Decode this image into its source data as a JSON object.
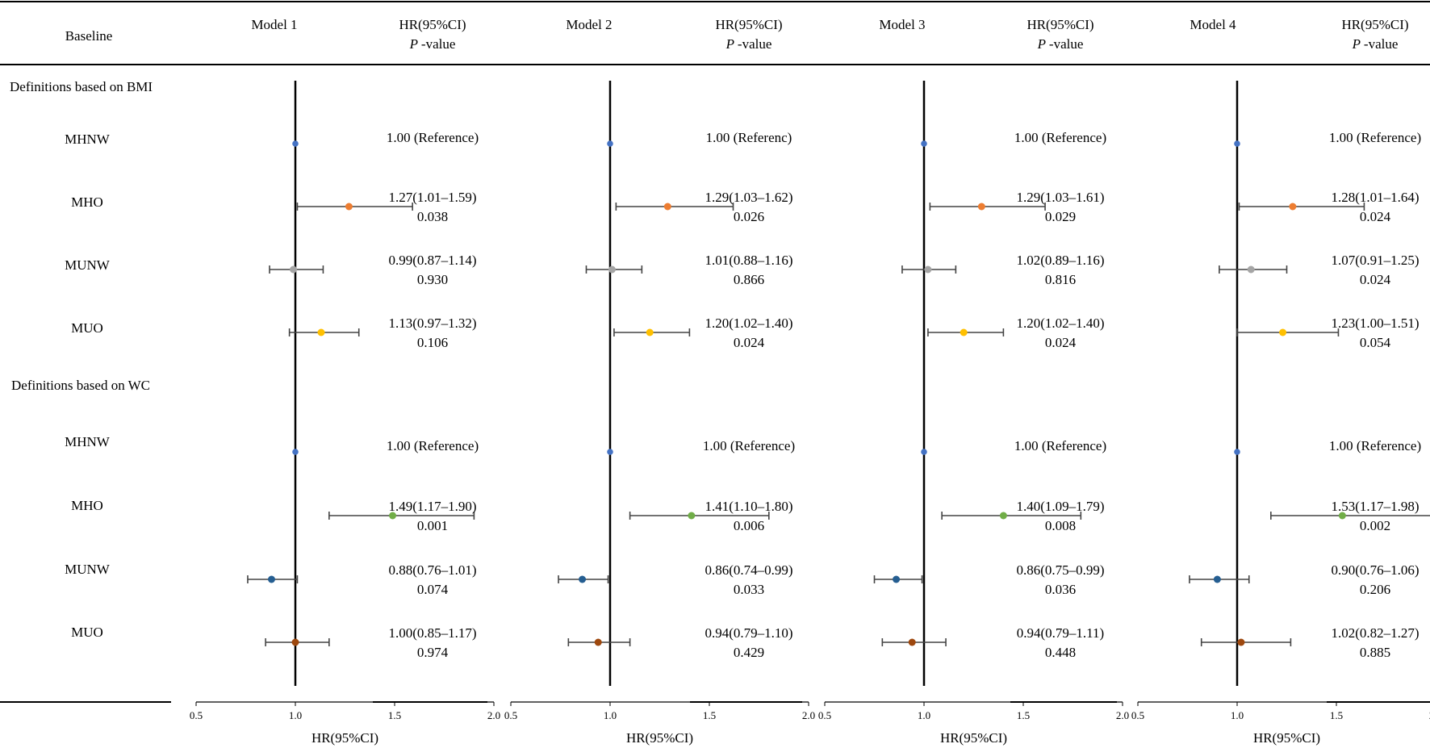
{
  "header": {
    "baseline": "Baseline",
    "hr_label": "HR(95%CI)",
    "p_label": "P",
    "p_suffix": "-value"
  },
  "sections": [
    {
      "title": "Definitions based on BMI",
      "rows": [
        "MHNW",
        "MHO",
        "MUNW",
        "MUO"
      ]
    },
    {
      "title": "Definitions based on WC",
      "rows": [
        "MHNW",
        "MHO",
        "MUNW",
        "MUO"
      ]
    }
  ],
  "axis_label": "HR(95%CI)",
  "series_colors": {
    "MHNW": "#4472c4",
    "MHO": "#ed7d31",
    "MUNW": "#a5a5a5",
    "MUO": "#ffc000",
    "WC_MHNW": "#4472c4",
    "WC_MHO": "#70ad47",
    "WC_MUNW": "#255e91",
    "WC_MUO": "#9e480e"
  },
  "chart_data": [
    {
      "type": "scatter",
      "title": "Model 1",
      "xlabel": "HR(95%CI)",
      "xlim": [
        0.5,
        2.0
      ],
      "xticks": [
        "0.5",
        "1.0",
        "1.5",
        "2.0"
      ],
      "reference_line": 1.0,
      "rows": [
        {
          "group": "BMI",
          "label": "MHNW",
          "hr": 1.0,
          "lo": null,
          "hi": null,
          "text": "1.00 (Reference)",
          "p": ""
        },
        {
          "group": "BMI",
          "label": "MHO",
          "hr": 1.27,
          "lo": 1.01,
          "hi": 1.59,
          "text": "1.27(1.01–1.59)",
          "p": "0.038"
        },
        {
          "group": "BMI",
          "label": "MUNW",
          "hr": 0.99,
          "lo": 0.87,
          "hi": 1.14,
          "text": "0.99(0.87–1.14)",
          "p": "0.930"
        },
        {
          "group": "BMI",
          "label": "MUO",
          "hr": 1.13,
          "lo": 0.97,
          "hi": 1.32,
          "text": "1.13(0.97–1.32)",
          "p": "0.106"
        },
        {
          "group": "WC",
          "label": "MHNW",
          "hr": 1.0,
          "lo": null,
          "hi": null,
          "text": "1.00 (Reference)",
          "p": ""
        },
        {
          "group": "WC",
          "label": "MHO",
          "hr": 1.49,
          "lo": 1.17,
          "hi": 1.9,
          "text": "1.49(1.17–1.90)",
          "p": "0.001"
        },
        {
          "group": "WC",
          "label": "MUNW",
          "hr": 0.88,
          "lo": 0.76,
          "hi": 1.01,
          "text": "0.88(0.76–1.01)",
          "p": "0.074"
        },
        {
          "group": "WC",
          "label": "MUO",
          "hr": 1.0,
          "lo": 0.85,
          "hi": 1.17,
          "text": "1.00(0.85–1.17)",
          "p": "0.974"
        }
      ]
    },
    {
      "type": "scatter",
      "title": "Model 2",
      "xlabel": "HR(95%CI)",
      "xlim": [
        0.5,
        2.0
      ],
      "xticks": [
        "0.5",
        "1.0",
        "1.5",
        "2.0"
      ],
      "reference_line": 1.0,
      "rows": [
        {
          "group": "BMI",
          "label": "MHNW",
          "hr": 1.0,
          "lo": null,
          "hi": null,
          "text": "1.00 (Referenc)",
          "p": ""
        },
        {
          "group": "BMI",
          "label": "MHO",
          "hr": 1.29,
          "lo": 1.03,
          "hi": 1.62,
          "text": "1.29(1.03–1.62)",
          "p": "0.026"
        },
        {
          "group": "BMI",
          "label": "MUNW",
          "hr": 1.01,
          "lo": 0.88,
          "hi": 1.16,
          "text": "1.01(0.88–1.16)",
          "p": "0.866"
        },
        {
          "group": "BMI",
          "label": "MUO",
          "hr": 1.2,
          "lo": 1.02,
          "hi": 1.4,
          "text": "1.20(1.02–1.40)",
          "p": "0.024"
        },
        {
          "group": "WC",
          "label": "MHNW",
          "hr": 1.0,
          "lo": null,
          "hi": null,
          "text": "1.00 (Reference)",
          "p": ""
        },
        {
          "group": "WC",
          "label": "MHO",
          "hr": 1.41,
          "lo": 1.1,
          "hi": 1.8,
          "text": "1.41(1.10–1.80)",
          "p": "0.006"
        },
        {
          "group": "WC",
          "label": "MUNW",
          "hr": 0.86,
          "lo": 0.74,
          "hi": 0.99,
          "text": "0.86(0.74–0.99)",
          "p": "0.033"
        },
        {
          "group": "WC",
          "label": "MUO",
          "hr": 0.94,
          "lo": 0.79,
          "hi": 1.1,
          "text": "0.94(0.79–1.10)",
          "p": "0.429"
        }
      ]
    },
    {
      "type": "scatter",
      "title": "Model 3",
      "xlabel": "HR(95%CI)",
      "xlim": [
        0.5,
        2.0
      ],
      "xticks": [
        "0.5",
        "1.0",
        "1.5",
        "2.0"
      ],
      "reference_line": 1.0,
      "rows": [
        {
          "group": "BMI",
          "label": "MHNW",
          "hr": 1.0,
          "lo": null,
          "hi": null,
          "text": "1.00 (Reference)",
          "p": ""
        },
        {
          "group": "BMI",
          "label": "MHO",
          "hr": 1.29,
          "lo": 1.03,
          "hi": 1.61,
          "text": "1.29(1.03–1.61)",
          "p": "0.029"
        },
        {
          "group": "BMI",
          "label": "MUNW",
          "hr": 1.02,
          "lo": 0.89,
          "hi": 1.16,
          "text": "1.02(0.89–1.16)",
          "p": "0.816"
        },
        {
          "group": "BMI",
          "label": "MUO",
          "hr": 1.2,
          "lo": 1.02,
          "hi": 1.4,
          "text": "1.20(1.02–1.40)",
          "p": "0.024"
        },
        {
          "group": "WC",
          "label": "MHNW",
          "hr": 1.0,
          "lo": null,
          "hi": null,
          "text": "1.00 (Reference)",
          "p": ""
        },
        {
          "group": "WC",
          "label": "MHO",
          "hr": 1.4,
          "lo": 1.09,
          "hi": 1.79,
          "text": "1.40(1.09–1.79)",
          "p": "0.008"
        },
        {
          "group": "WC",
          "label": "MUNW",
          "hr": 0.86,
          "lo": 0.75,
          "hi": 0.99,
          "text": "0.86(0.75–0.99)",
          "p": "0.036"
        },
        {
          "group": "WC",
          "label": "MUO",
          "hr": 0.94,
          "lo": 0.79,
          "hi": 1.11,
          "text": "0.94(0.79–1.11)",
          "p": "0.448"
        }
      ]
    },
    {
      "type": "scatter",
      "title": "Model 4",
      "xlabel": "HR(95%CI)",
      "xlim": [
        0.5,
        2.0
      ],
      "xticks": [
        "0.5",
        "1.0",
        "1.5",
        "2.0"
      ],
      "reference_line": 1.0,
      "rows": [
        {
          "group": "BMI",
          "label": "MHNW",
          "hr": 1.0,
          "lo": null,
          "hi": null,
          "text": "1.00 (Reference)",
          "p": ""
        },
        {
          "group": "BMI",
          "label": "MHO",
          "hr": 1.28,
          "lo": 1.01,
          "hi": 1.64,
          "text": "1.28(1.01–1.64)",
          "p": "0.024"
        },
        {
          "group": "BMI",
          "label": "MUNW",
          "hr": 1.07,
          "lo": 0.91,
          "hi": 1.25,
          "text": "1.07(0.91–1.25)",
          "p": "0.024"
        },
        {
          "group": "BMI",
          "label": "MUO",
          "hr": 1.23,
          "lo": 1.0,
          "hi": 1.51,
          "text": "1.23(1.00–1.51)",
          "p": "0.054"
        },
        {
          "group": "WC",
          "label": "MHNW",
          "hr": 1.0,
          "lo": null,
          "hi": null,
          "text": "1.00 (Reference)",
          "p": ""
        },
        {
          "group": "WC",
          "label": "MHO",
          "hr": 1.53,
          "lo": 1.17,
          "hi": 1.98,
          "text": "1.53(1.17–1.98)",
          "p": "0.002"
        },
        {
          "group": "WC",
          "label": "MUNW",
          "hr": 0.9,
          "lo": 0.76,
          "hi": 1.06,
          "text": "0.90(0.76–1.06)",
          "p": "0.206"
        },
        {
          "group": "WC",
          "label": "MUO",
          "hr": 1.02,
          "lo": 0.82,
          "hi": 1.27,
          "text": "1.02(0.82–1.27)",
          "p": "0.885"
        }
      ]
    }
  ]
}
